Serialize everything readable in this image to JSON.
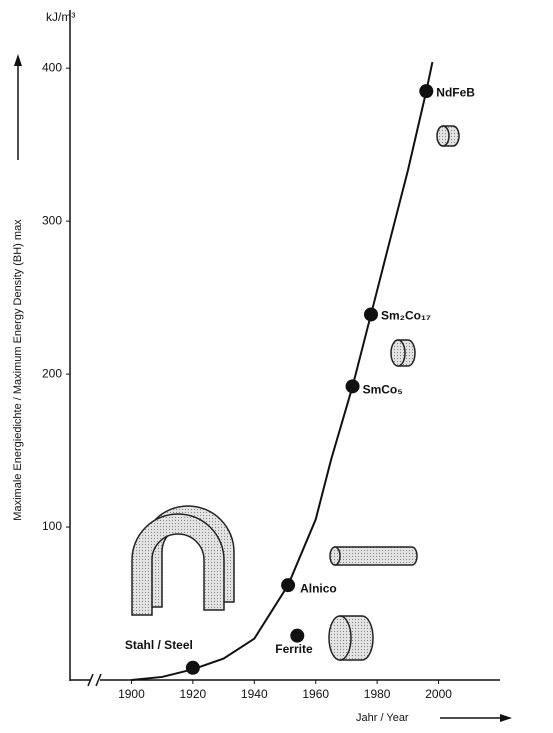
{
  "chart_data": {
    "type": "line",
    "y_unit": "kJ/m³",
    "y_label": "Maximale Energiedichte / Maximum Energy Density  (BH) max",
    "x_label": "Jahr / Year",
    "xlim": [
      1880,
      2020
    ],
    "ylim": [
      0,
      440
    ],
    "xticks": [
      1900,
      1920,
      1940,
      1960,
      1980,
      2000
    ],
    "yticks": [
      100,
      200,
      300,
      400
    ],
    "color": "#111111",
    "x": [
      1900,
      1910,
      1920,
      1930,
      1940,
      1951,
      1960,
      1965,
      1972,
      1978,
      1985,
      1990,
      1996,
      1998
    ],
    "values": [
      0,
      2,
      7,
      14,
      27,
      62,
      105,
      144,
      192,
      239,
      294,
      333,
      385,
      404
    ],
    "points": [
      {
        "label": "Stahl / Steel",
        "x": 1920,
        "y": 8
      },
      {
        "label": "Alnico",
        "x": 1951,
        "y": 62
      },
      {
        "label": "Ferrite",
        "x": 1954,
        "y": 29
      },
      {
        "label": "SmCo₅",
        "x": 1972,
        "y": 192
      },
      {
        "label": "Sm₂Co₁₇",
        "x": 1978,
        "y": 239
      },
      {
        "label": "NdFeB",
        "x": 1996,
        "y": 385
      }
    ]
  }
}
